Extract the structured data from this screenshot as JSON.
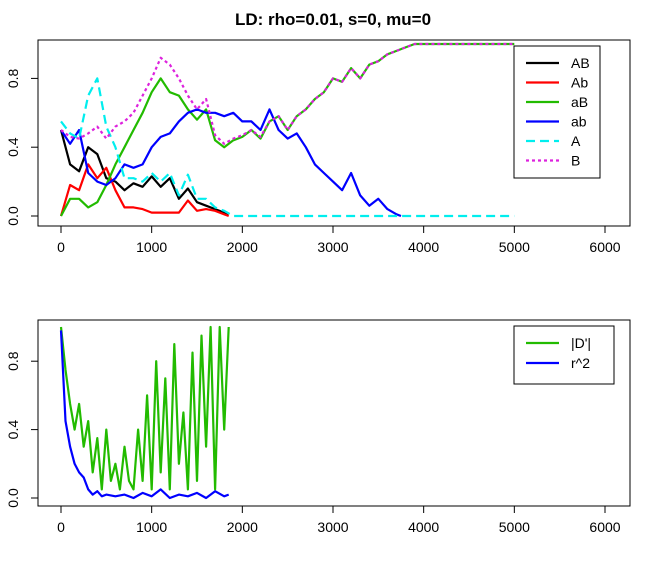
{
  "chart_data": [
    {
      "type": "line",
      "title": "LD: rho=0.01, s=0, mu=0",
      "xlabel": "",
      "ylabel": "",
      "xlim": [
        0,
        6000
      ],
      "ylim": [
        0,
        1
      ],
      "x_ticks": [
        "0",
        "1000",
        "2000",
        "3000",
        "4000",
        "5000",
        "6000"
      ],
      "y_ticks": [
        "0.0",
        "0.4",
        "0.8"
      ],
      "legend_position": "top-right",
      "series": [
        {
          "name": "AB",
          "color": "#000000",
          "dash": "solid",
          "x": [
            0,
            100,
            200,
            300,
            400,
            500,
            600,
            700,
            800,
            900,
            1000,
            1100,
            1200,
            1300,
            1400,
            1500,
            1600,
            1700,
            1800,
            1850
          ],
          "y": [
            0.5,
            0.3,
            0.26,
            0.4,
            0.36,
            0.22,
            0.2,
            0.15,
            0.19,
            0.17,
            0.23,
            0.17,
            0.22,
            0.1,
            0.16,
            0.08,
            0.06,
            0.04,
            0.02,
            0.01
          ]
        },
        {
          "name": "Ab",
          "color": "#ff0000",
          "dash": "solid",
          "x": [
            0,
            100,
            200,
            300,
            400,
            500,
            600,
            700,
            800,
            900,
            1000,
            1100,
            1200,
            1300,
            1400,
            1500,
            1600,
            1700,
            1800,
            1850
          ],
          "y": [
            0.0,
            0.18,
            0.15,
            0.3,
            0.22,
            0.28,
            0.15,
            0.05,
            0.05,
            0.04,
            0.02,
            0.02,
            0.02,
            0.02,
            0.09,
            0.03,
            0.04,
            0.03,
            0.01,
            0.0
          ]
        },
        {
          "name": "aB",
          "color": "#22bb00",
          "dash": "solid",
          "x": [
            0,
            100,
            200,
            300,
            400,
            500,
            600,
            700,
            800,
            900,
            1000,
            1100,
            1200,
            1300,
            1400,
            1500,
            1600,
            1700,
            1800,
            1900,
            2000,
            2100,
            2200,
            2300,
            2400,
            2500,
            2600,
            2700,
            2800,
            2900,
            3000,
            3100,
            3200,
            3300,
            3400,
            3500,
            3600,
            3700,
            3800,
            3900,
            4000,
            4200,
            4500,
            4800,
            5000
          ],
          "y": [
            0.0,
            0.1,
            0.1,
            0.05,
            0.08,
            0.18,
            0.3,
            0.4,
            0.5,
            0.6,
            0.72,
            0.8,
            0.72,
            0.7,
            0.62,
            0.56,
            0.62,
            0.44,
            0.4,
            0.44,
            0.46,
            0.5,
            0.45,
            0.55,
            0.58,
            0.5,
            0.58,
            0.62,
            0.68,
            0.72,
            0.8,
            0.78,
            0.86,
            0.8,
            0.88,
            0.9,
            0.94,
            0.96,
            0.98,
            1.0,
            1.0,
            1.0,
            1.0,
            1.0,
            1.0
          ]
        },
        {
          "name": "ab",
          "color": "#0000ff",
          "dash": "solid",
          "x": [
            0,
            100,
            200,
            300,
            400,
            500,
            600,
            700,
            800,
            900,
            1000,
            1100,
            1200,
            1300,
            1400,
            1500,
            1600,
            1700,
            1800,
            1900,
            2000,
            2100,
            2200,
            2300,
            2400,
            2500,
            2600,
            2700,
            2800,
            2900,
            3000,
            3100,
            3200,
            3300,
            3400,
            3500,
            3600,
            3700,
            3750
          ],
          "y": [
            0.5,
            0.42,
            0.5,
            0.25,
            0.2,
            0.18,
            0.22,
            0.3,
            0.28,
            0.3,
            0.4,
            0.46,
            0.48,
            0.55,
            0.6,
            0.62,
            0.6,
            0.6,
            0.58,
            0.6,
            0.55,
            0.55,
            0.5,
            0.62,
            0.5,
            0.45,
            0.48,
            0.4,
            0.3,
            0.25,
            0.2,
            0.15,
            0.25,
            0.12,
            0.06,
            0.1,
            0.04,
            0.01,
            0.0
          ]
        },
        {
          "name": "A",
          "color": "#00eeee",
          "dash": "dashed",
          "x": [
            0,
            100,
            200,
            300,
            400,
            500,
            600,
            700,
            800,
            900,
            1000,
            1100,
            1200,
            1300,
            1400,
            1500,
            1600,
            1700,
            1800,
            1900,
            2000,
            3000,
            4000,
            5000
          ],
          "y": [
            0.55,
            0.48,
            0.45,
            0.7,
            0.8,
            0.52,
            0.4,
            0.22,
            0.22,
            0.2,
            0.25,
            0.2,
            0.25,
            0.12,
            0.24,
            0.1,
            0.1,
            0.05,
            0.03,
            0.0,
            0.0,
            0.0,
            0.0,
            0.0
          ]
        },
        {
          "name": "B",
          "color": "#dd22dd",
          "dash": "dotted",
          "x": [
            0,
            100,
            200,
            300,
            400,
            500,
            600,
            700,
            800,
            900,
            1000,
            1100,
            1200,
            1300,
            1400,
            1500,
            1600,
            1700,
            1800,
            1900,
            2000,
            2100,
            2200,
            2300,
            2400,
            2500,
            2600,
            2700,
            2800,
            2900,
            3000,
            3100,
            3200,
            3300,
            3400,
            3500,
            3600,
            3700,
            3800,
            3900,
            4000,
            4200,
            4500,
            4800,
            5000
          ],
          "y": [
            0.5,
            0.46,
            0.45,
            0.48,
            0.52,
            0.45,
            0.52,
            0.55,
            0.6,
            0.7,
            0.8,
            0.92,
            0.88,
            0.8,
            0.7,
            0.62,
            0.68,
            0.47,
            0.42,
            0.45,
            0.47,
            0.5,
            0.46,
            0.55,
            0.58,
            0.5,
            0.58,
            0.62,
            0.68,
            0.72,
            0.8,
            0.78,
            0.86,
            0.8,
            0.88,
            0.9,
            0.94,
            0.96,
            0.98,
            1.0,
            1.0,
            1.0,
            1.0,
            1.0,
            1.0
          ]
        }
      ]
    },
    {
      "type": "line",
      "title": "",
      "xlabel": "",
      "ylabel": "",
      "xlim": [
        0,
        6000
      ],
      "ylim": [
        0,
        1
      ],
      "x_ticks": [
        "0",
        "1000",
        "2000",
        "3000",
        "4000",
        "5000",
        "6000"
      ],
      "y_ticks": [
        "0.0",
        "0.4",
        "0.8"
      ],
      "legend_position": "top-right",
      "series": [
        {
          "name": "|D'|",
          "color": "#22bb00",
          "dash": "solid",
          "x": [
            0,
            50,
            100,
            150,
            200,
            250,
            300,
            350,
            400,
            450,
            500,
            550,
            600,
            650,
            700,
            750,
            800,
            850,
            900,
            950,
            1000,
            1050,
            1100,
            1150,
            1200,
            1250,
            1300,
            1350,
            1400,
            1450,
            1500,
            1550,
            1600,
            1650,
            1700,
            1750,
            1800,
            1850
          ],
          "y": [
            1.0,
            0.75,
            0.55,
            0.4,
            0.55,
            0.3,
            0.45,
            0.15,
            0.35,
            0.05,
            0.4,
            0.1,
            0.2,
            0.05,
            0.3,
            0.1,
            0.05,
            0.4,
            0.1,
            0.6,
            0.05,
            0.8,
            0.15,
            0.7,
            0.05,
            0.9,
            0.2,
            0.5,
            0.05,
            0.85,
            0.1,
            0.95,
            0.3,
            1.0,
            0.05,
            1.0,
            0.4,
            1.0
          ]
        },
        {
          "name": "r^2",
          "color": "#0000ff",
          "dash": "solid",
          "x": [
            0,
            50,
            100,
            150,
            200,
            250,
            300,
            350,
            400,
            450,
            500,
            600,
            700,
            800,
            900,
            1000,
            1100,
            1200,
            1300,
            1400,
            1500,
            1600,
            1700,
            1800,
            1850
          ],
          "y": [
            0.98,
            0.45,
            0.3,
            0.2,
            0.15,
            0.12,
            0.05,
            0.02,
            0.04,
            0.01,
            0.02,
            0.01,
            0.02,
            0.0,
            0.03,
            0.01,
            0.05,
            0.0,
            0.02,
            0.01,
            0.03,
            0.0,
            0.04,
            0.01,
            0.02
          ]
        }
      ]
    }
  ]
}
